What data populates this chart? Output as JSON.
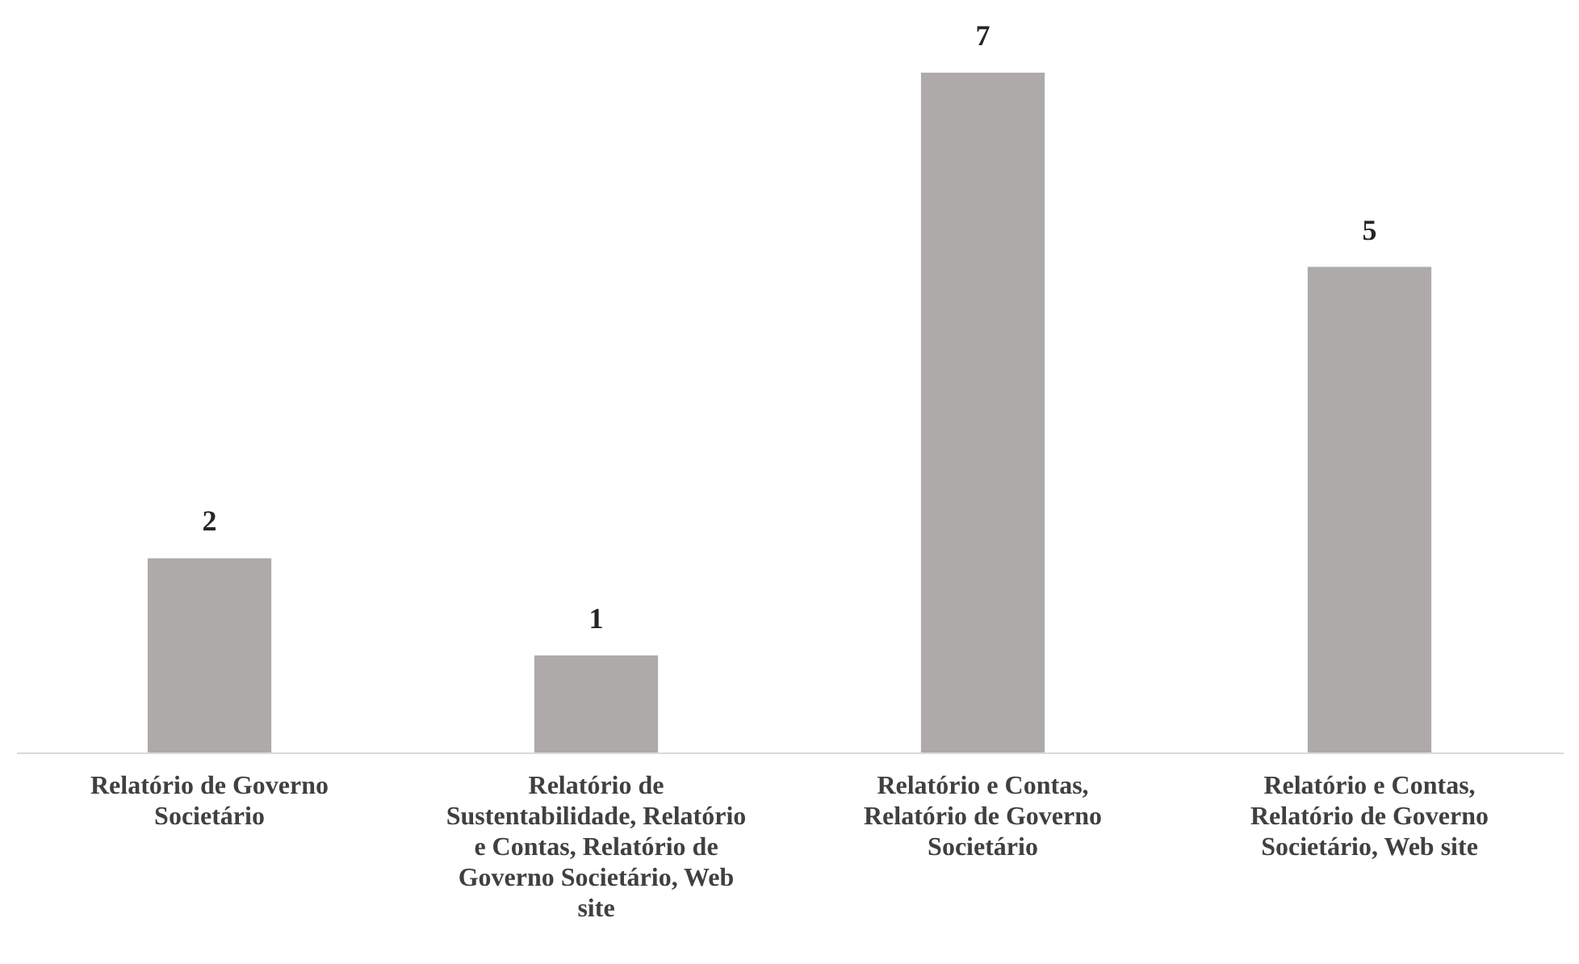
{
  "chart_data": {
    "type": "bar",
    "categories": [
      "Relatório de Governo Societário",
      "Relatório de Sustentabilidade, Relatório e Contas, Relatório de Governo Societário, Web site",
      "Relatório e Contas, Relatório de Governo Societário",
      "Relatório e Contas, Relatório de Governo Societário, Web site"
    ],
    "values": [
      2,
      1,
      7,
      5
    ],
    "color": "#aeaaaa",
    "data_labels": true,
    "tick_labels": "x",
    "grid": false
  }
}
